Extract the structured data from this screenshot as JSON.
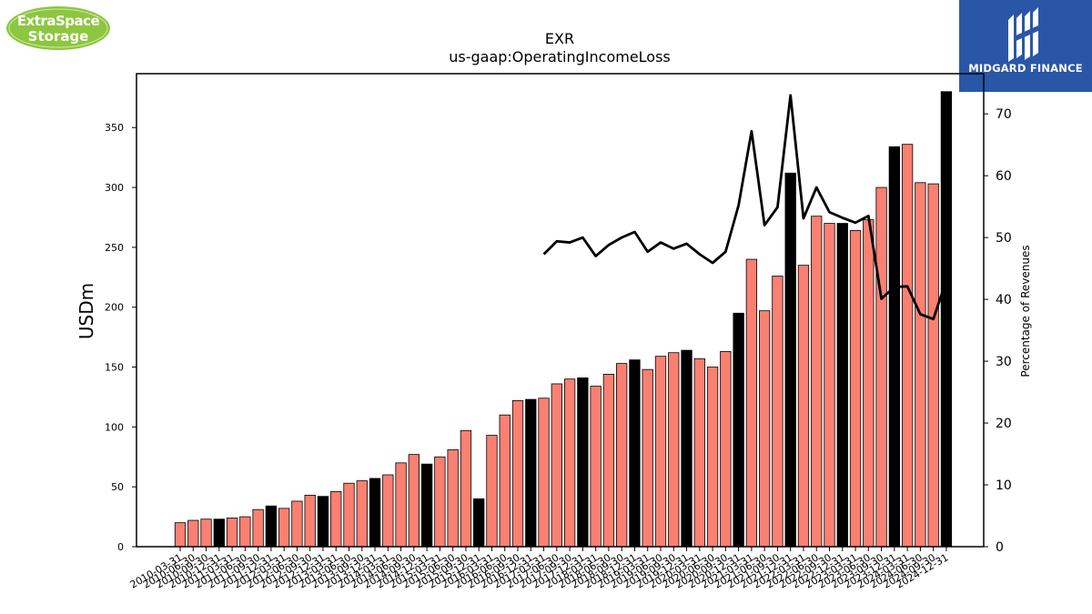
{
  "header": {
    "ticker": "EXR",
    "metric": "us-gaap:OperatingIncomeLoss"
  },
  "logos": {
    "left_brand": "ExtraSpace Storage",
    "left_line1": "ExtraSpace",
    "left_line2": "Storage",
    "left_color": "#8dc63f",
    "right_brand": "MIDGARD FINANCE",
    "right_color": "#2a56a8"
  },
  "chart_data": {
    "type": "bar",
    "title": "EXR",
    "subtitle": "us-gaap:OperatingIncomeLoss",
    "ylabel": "USDm",
    "y2label": "Percentage of Revenues",
    "ylim": [
      0,
      395
    ],
    "y2lim": [
      0,
      76.5
    ],
    "yticks": [
      0,
      50,
      100,
      150,
      200,
      250,
      300,
      350
    ],
    "y2ticks": [
      0,
      10,
      20,
      30,
      40,
      50,
      60,
      70
    ],
    "colors": {
      "quarter": "#fa8072",
      "annual": "#000000",
      "line": "#000000"
    },
    "grid": false,
    "categories": [
      "2010-03-31",
      "2010-06-30",
      "2010-09-30",
      "2010-12-31",
      "2011-03-31",
      "2011-06-30",
      "2011-09-30",
      "2011-12-31",
      "2012-03-31",
      "2012-06-30",
      "2012-09-30",
      "2012-12-31",
      "2013-03-31",
      "2013-06-30",
      "2013-09-30",
      "2013-12-31",
      "2014-03-31",
      "2014-06-30",
      "2014-09-30",
      "2014-12-31",
      "2015-03-31",
      "2015-06-30",
      "2015-09-30",
      "2015-12-31",
      "2016-03-31",
      "2016-06-30",
      "2016-09-30",
      "2016-12-31",
      "2017-03-31",
      "2017-06-30",
      "2017-09-30",
      "2017-12-31",
      "2018-03-31",
      "2018-06-30",
      "2018-09-30",
      "2018-12-31",
      "2019-03-31",
      "2019-06-30",
      "2019-09-30",
      "2019-12-31",
      "2020-03-31",
      "2020-06-30",
      "2020-09-30",
      "2020-12-31",
      "2021-03-31",
      "2021-06-30",
      "2021-09-30",
      "2021-12-31",
      "2022-03-31",
      "2022-06-30",
      "2022-09-30",
      "2022-12-31",
      "2023-03-31",
      "2023-06-30",
      "2023-09-30",
      "2023-12-31",
      "2024-03-31",
      "2024-06-30",
      "2024-09-30",
      "2024-12-31"
    ],
    "tick_labels": [
      "2010-03-31",
      "2010-06-30",
      "2010-09-30",
      "2010-12-31",
      "2011-03-31",
      "2011-06-30",
      "2011-09-30",
      "2011-12-31",
      "2012-03-31",
      "2012-06-30",
      "2012-09-30",
      "2012-12-31",
      "2013-03-31",
      "2013-06-30",
      "2013-09-30",
      "2013-12-31",
      "2014-03-31",
      "2014-06-30",
      "2014-09-30",
      "2014-12-31",
      "2015-03-31",
      "2015-06-30",
      "2015-09-30",
      "2015-12-31",
      "2016-03-31",
      "2016-06-30",
      "2016-09-30",
      "2016-12-31",
      "2017-03-31",
      "2017-06-30",
      "2017-09-30",
      "2017-12-31",
      "2018-03-31",
      "2018-06-30",
      "2018-09-30",
      "2018-12-31",
      "2019-03-31",
      "2019-06-30",
      "2019-09-30",
      "2019-12-31",
      "2020-03-31",
      "2020-06-30",
      "2020-09-30",
      "2020-12-31",
      "2021-03-31",
      "2021-06-30",
      "2021-09-30",
      "2021-12-31",
      "2022-03-31",
      "2022-06-30",
      "2022-09-30",
      "2022-12-31",
      "2023-03-31",
      "2023-06-30",
      "2023-09-30",
      "2023-12-31",
      "2024-03-31",
      "2024-06-30",
      "2024-09-30",
      "2024-12-31"
    ],
    "bar_values": [
      20,
      22,
      23,
      23,
      24,
      25,
      31,
      34,
      32,
      38,
      43,
      42,
      46,
      53,
      55,
      57,
      60,
      70,
      77,
      69,
      75,
      81,
      97,
      40,
      93,
      110,
      122,
      123,
      124,
      136,
      140,
      141,
      134,
      144,
      153,
      156,
      148,
      159,
      162,
      164,
      157,
      150,
      163,
      195,
      240,
      197,
      226,
      312,
      235,
      276,
      270,
      270,
      264,
      273,
      300,
      334,
      336,
      304,
      303,
      380
    ],
    "bar_type": [
      "q",
      "q",
      "q",
      "a",
      "q",
      "q",
      "q",
      "a",
      "q",
      "q",
      "q",
      "a",
      "q",
      "q",
      "q",
      "a",
      "q",
      "q",
      "q",
      "a",
      "q",
      "q",
      "q",
      "a",
      "q",
      "q",
      "q",
      "a",
      "q",
      "q",
      "q",
      "a",
      "q",
      "q",
      "q",
      "a",
      "q",
      "q",
      "q",
      "a",
      "q",
      "q",
      "q",
      "a",
      "q",
      "q",
      "q",
      "a",
      "q",
      "q",
      "q",
      "a",
      "q",
      "q",
      "q",
      "a",
      "q",
      "q",
      "q",
      "a"
    ],
    "line_values": [
      null,
      null,
      null,
      null,
      null,
      null,
      null,
      null,
      null,
      null,
      null,
      null,
      null,
      null,
      null,
      null,
      null,
      null,
      null,
      null,
      null,
      null,
      null,
      null,
      null,
      null,
      null,
      null,
      47.3,
      49.4,
      49.2,
      50.0,
      47.0,
      48.8,
      50.0,
      50.9,
      47.7,
      49.2,
      48.2,
      49.0,
      47.3,
      45.9,
      47.7,
      55.2,
      67.2,
      52.0,
      54.9,
      73.0,
      53.1,
      58.1,
      54.1,
      53.2,
      52.4,
      53.5,
      40.1,
      42.0,
      42.1,
      37.6,
      36.8,
      43.1
    ]
  }
}
